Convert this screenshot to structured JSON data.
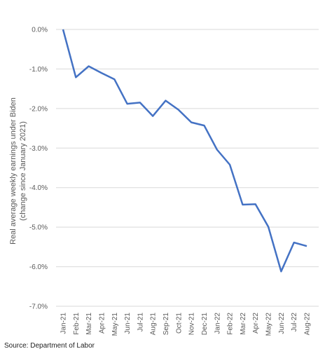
{
  "chart_data": {
    "type": "line",
    "ylabel_line1": "Real average weekly earnings under Biden",
    "ylabel_line2": "(change since January 2021)",
    "categories": [
      "Jan-21",
      "Feb-21",
      "Mar-21",
      "Apr-21",
      "May-21",
      "Jun-21",
      "Jul-21",
      "Aug-21",
      "Sep-21",
      "Oct-21",
      "Nov-21",
      "Dec-21",
      "Jan-22",
      "Feb-22",
      "Mar-22",
      "Apr-22",
      "May-22",
      "Jun-22",
      "Jul-22",
      "Aug-22"
    ],
    "values": [
      0.0,
      -1.21,
      -0.93,
      -1.1,
      -1.26,
      -1.88,
      -1.85,
      -2.19,
      -1.8,
      -2.03,
      -2.35,
      -2.43,
      -3.04,
      -3.42,
      -4.43,
      -4.42,
      -4.99,
      -6.12,
      -5.39,
      -5.48
    ],
    "yticks": [
      "0.0%",
      "-1.0%",
      "-2.0%",
      "-3.0%",
      "-4.0%",
      "-5.0%",
      "-6.0%",
      "-7.0%"
    ],
    "ylim": [
      -7,
      0
    ],
    "grid": true,
    "line_color": "#4472C4",
    "grid_color": "#d9d9d9"
  },
  "source": "Source: Department of Labor"
}
